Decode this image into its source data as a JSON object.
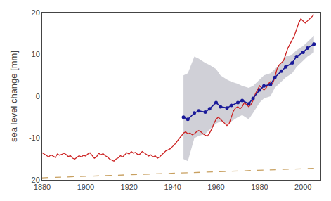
{
  "chart_data": {
    "type": "line",
    "ylabel": "sea level change [mm]",
    "xlim": [
      1880,
      2008
    ],
    "ylim": [
      -20,
      20
    ],
    "xticks": [
      1880,
      1900,
      1920,
      1940,
      1960,
      1980,
      2000
    ],
    "yticks": [
      -20,
      -10,
      0,
      10,
      20
    ],
    "grid": false,
    "series": [
      {
        "x": [
          1880,
          2008
        ],
        "values": [
          -19.5,
          -17.2
        ],
        "color": "#c8a060",
        "line_style": "dashed"
      },
      {
        "type": "band",
        "x": [
          1945,
          1947,
          1950,
          1952,
          1955,
          1957,
          1960,
          1962,
          1965,
          1967,
          1970,
          1972,
          1975,
          1977,
          1980,
          1982,
          1985,
          1987,
          1990,
          1992,
          1995,
          1997,
          2000,
          2002,
          2005
        ],
        "upper": [
          5.0,
          5.5,
          9.5,
          9.0,
          8.0,
          7.5,
          6.5,
          5.0,
          4.0,
          3.5,
          3.0,
          2.5,
          2.0,
          2.5,
          4.0,
          5.0,
          5.5,
          6.5,
          8.0,
          9.5,
          10.0,
          11.0,
          12.0,
          13.0,
          14.5
        ],
        "lower": [
          -15.0,
          -15.5,
          -10.0,
          -9.5,
          -9.0,
          -8.0,
          -6.5,
          -6.0,
          -6.5,
          -6.0,
          -5.0,
          -4.5,
          -5.5,
          -4.0,
          -1.5,
          -0.5,
          0.0,
          2.0,
          3.5,
          4.5,
          5.5,
          7.0,
          8.5,
          9.5,
          10.5
        ],
        "color": "#c8c8d0"
      },
      {
        "x": [
          1880,
          1881,
          1882,
          1883,
          1884,
          1885,
          1886,
          1887,
          1888,
          1889,
          1890,
          1891,
          1892,
          1893,
          1894,
          1895,
          1896,
          1897,
          1898,
          1899,
          1900,
          1901,
          1902,
          1903,
          1904,
          1905,
          1906,
          1907,
          1908,
          1909,
          1910,
          1911,
          1912,
          1913,
          1914,
          1915,
          1916,
          1917,
          1918,
          1919,
          1920,
          1921,
          1922,
          1923,
          1924,
          1925,
          1926,
          1927,
          1928,
          1929,
          1930,
          1931,
          1932,
          1933,
          1934,
          1935,
          1936,
          1937,
          1938,
          1939,
          1940,
          1941,
          1942,
          1943,
          1944,
          1945,
          1946,
          1947,
          1948,
          1949,
          1950,
          1951,
          1952,
          1953,
          1954,
          1955,
          1956,
          1957,
          1958,
          1959,
          1960,
          1961,
          1962,
          1963,
          1964,
          1965,
          1966,
          1967,
          1968,
          1969,
          1970,
          1971,
          1972,
          1973,
          1974,
          1975,
          1976,
          1977,
          1978,
          1979,
          1980,
          1981,
          1982,
          1983,
          1984,
          1985,
          1986,
          1987,
          1988,
          1989,
          1990,
          1991,
          1992,
          1993,
          1994,
          1995,
          1996,
          1997,
          1998,
          1999,
          2000,
          2001,
          2002,
          2003,
          2004,
          2005
        ],
        "values": [
          -13.5,
          -13.8,
          -14.2,
          -14.5,
          -14.0,
          -14.3,
          -14.6,
          -13.8,
          -14.1,
          -13.9,
          -13.6,
          -13.9,
          -14.4,
          -14.2,
          -14.8,
          -15.0,
          -14.6,
          -14.2,
          -14.5,
          -14.1,
          -14.3,
          -13.8,
          -13.5,
          -14.2,
          -14.8,
          -14.5,
          -13.6,
          -14.0,
          -13.7,
          -14.2,
          -14.5,
          -15.0,
          -15.3,
          -15.5,
          -15.0,
          -14.7,
          -14.2,
          -14.5,
          -14.0,
          -13.5,
          -13.8,
          -13.2,
          -13.6,
          -13.4,
          -14.0,
          -13.8,
          -13.2,
          -13.5,
          -13.9,
          -14.3,
          -14.0,
          -14.5,
          -14.2,
          -14.8,
          -14.5,
          -14.0,
          -13.5,
          -13.0,
          -12.8,
          -12.5,
          -12.0,
          -11.5,
          -10.8,
          -10.2,
          -9.5,
          -8.8,
          -8.5,
          -9.0,
          -8.8,
          -9.2,
          -9.0,
          -8.5,
          -8.2,
          -8.5,
          -9.0,
          -9.3,
          -9.5,
          -8.8,
          -7.8,
          -6.5,
          -5.5,
          -5.0,
          -5.5,
          -6.0,
          -6.5,
          -7.0,
          -6.5,
          -5.0,
          -3.5,
          -2.8,
          -2.5,
          -3.0,
          -2.5,
          -1.5,
          -2.0,
          -2.5,
          -2.0,
          -1.0,
          0.5,
          1.5,
          2.5,
          2.0,
          1.5,
          2.0,
          3.0,
          3.5,
          3.0,
          4.5,
          6.5,
          7.5,
          8.0,
          8.5,
          10.0,
          11.5,
          12.5,
          13.5,
          14.5,
          16.0,
          17.5,
          18.5,
          18.0,
          17.5,
          18.0,
          18.5,
          19.0,
          19.5
        ],
        "color": "#cc2222",
        "line_style": "solid"
      },
      {
        "x": [
          1945,
          1947,
          1950,
          1952,
          1955,
          1957,
          1960,
          1962,
          1965,
          1967,
          1970,
          1972,
          1975,
          1977,
          1980,
          1982,
          1985,
          1987,
          1990,
          1992,
          1995,
          1997,
          2000,
          2002,
          2005
        ],
        "values": [
          -5.0,
          -5.5,
          -4.0,
          -3.5,
          -3.8,
          -3.0,
          -1.5,
          -2.5,
          -2.8,
          -2.2,
          -1.5,
          -1.0,
          -1.8,
          -0.5,
          1.5,
          2.5,
          2.8,
          4.5,
          6.0,
          7.0,
          8.0,
          9.5,
          10.5,
          11.5,
          12.5
        ],
        "color": "#1a1a99",
        "line_style": "solid",
        "marker": "circle"
      }
    ]
  }
}
